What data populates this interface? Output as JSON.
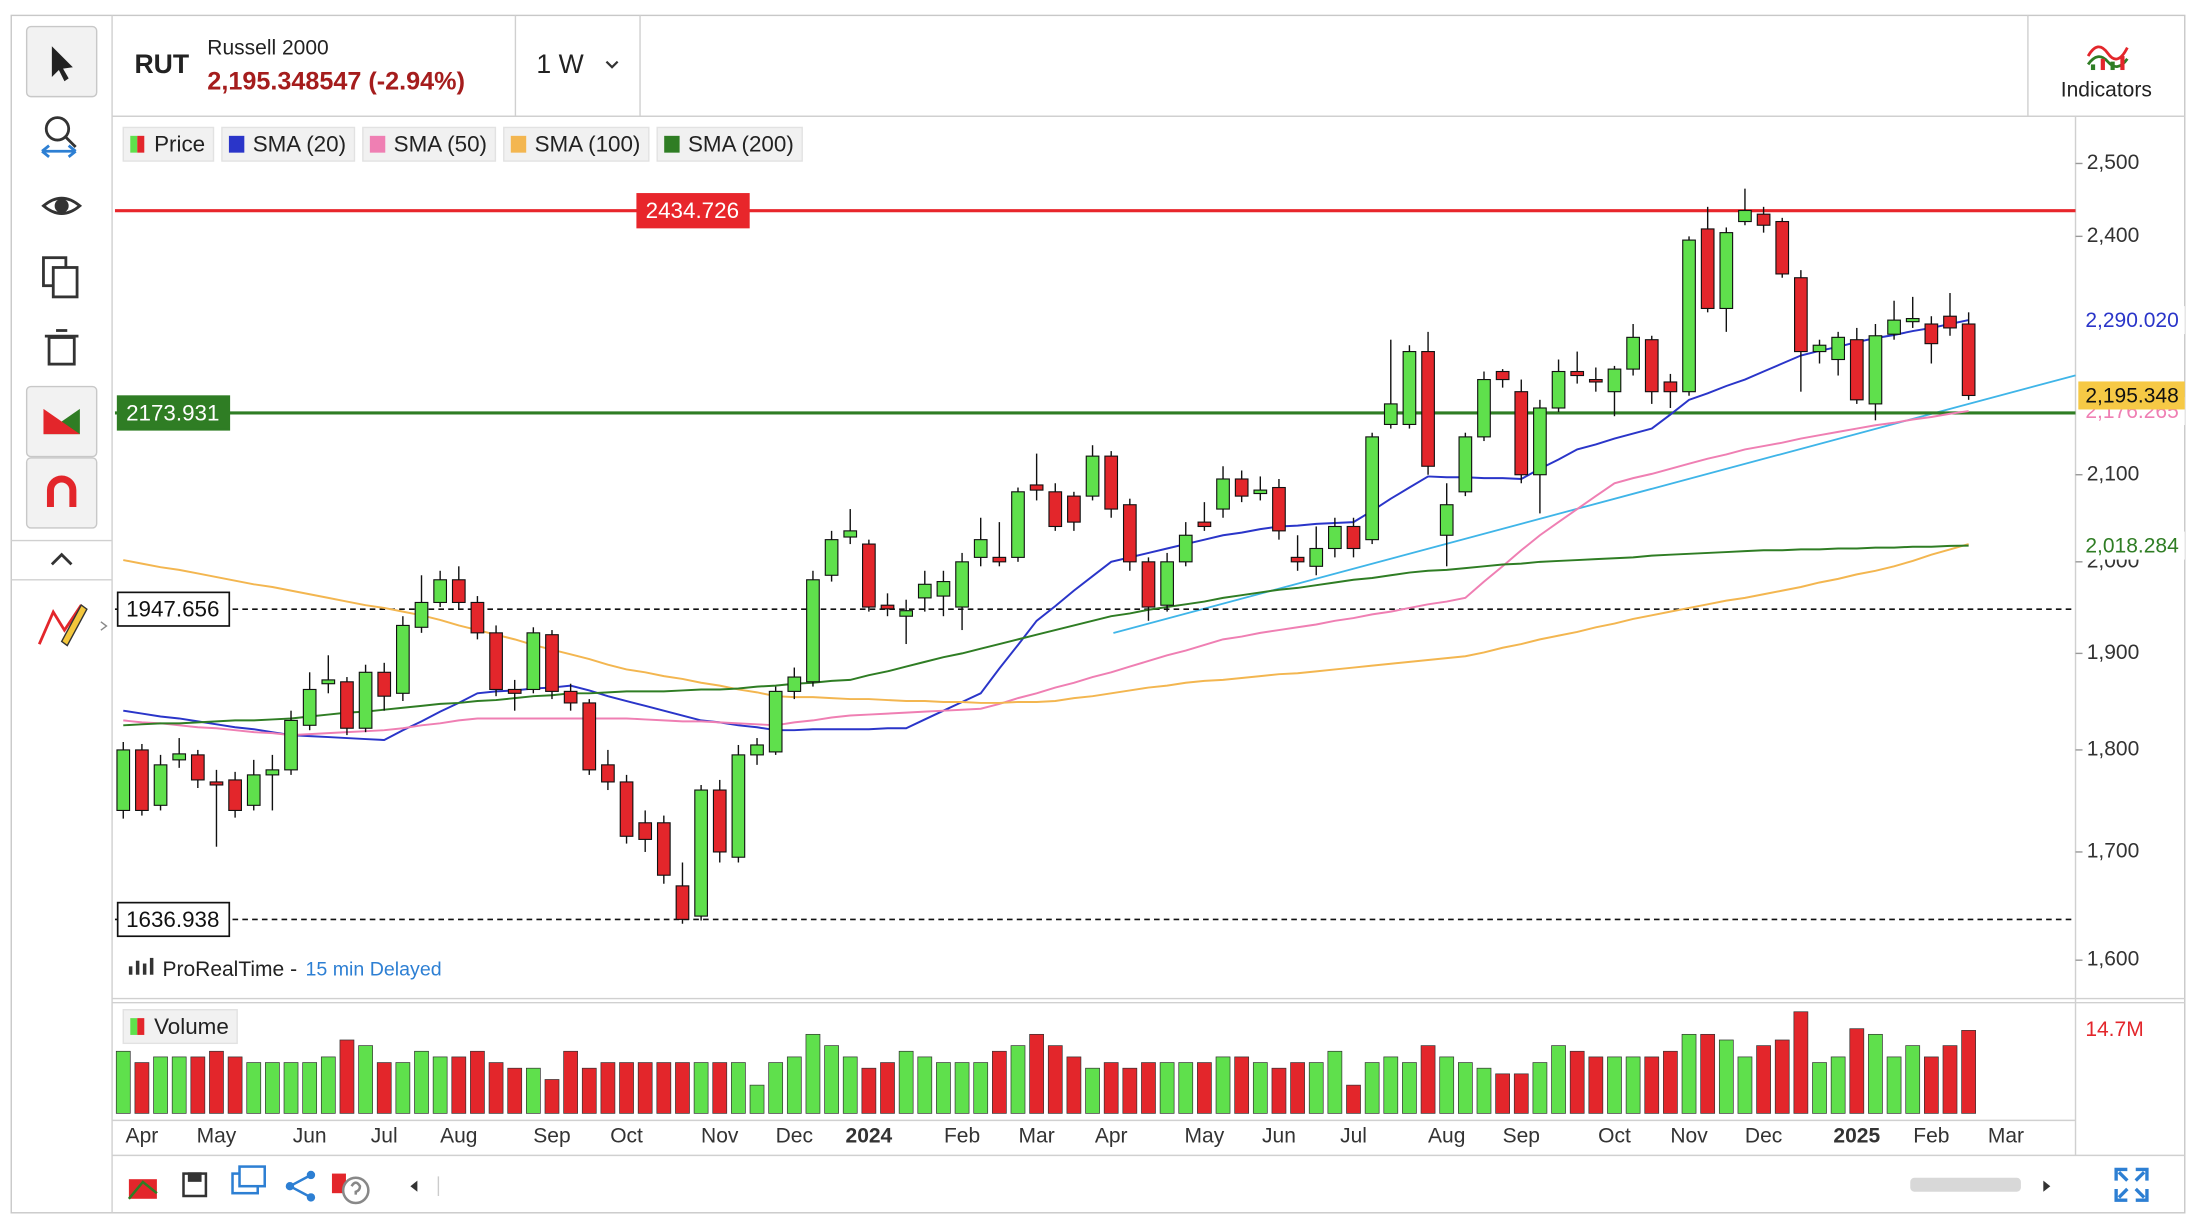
{
  "header": {
    "symbol": "RUT",
    "name": "Russell 2000",
    "price": "2,195.348547 (-2.94%)",
    "timeframe": "1 W",
    "indicators": "Indicators"
  },
  "chart_data": {
    "type": "candlestick",
    "categories": [
      null,
      "Apr",
      null,
      null,
      null,
      "May",
      null,
      null,
      null,
      null,
      "Jun",
      null,
      null,
      null,
      "Jul",
      null,
      null,
      null,
      "Aug",
      null,
      null,
      null,
      null,
      "Sep",
      null,
      null,
      null,
      "Oct",
      null,
      null,
      null,
      null,
      "Nov",
      null,
      null,
      null,
      "Dec",
      null,
      null,
      null,
      "2024",
      null,
      null,
      null,
      null,
      "Feb",
      null,
      null,
      null,
      "Mar",
      null,
      null,
      null,
      "Apr",
      null,
      null,
      null,
      null,
      "May",
      null,
      null,
      null,
      "Jun",
      null,
      null,
      null,
      "Jul",
      null,
      null,
      null,
      null,
      "Aug",
      null,
      null,
      null,
      "Sep",
      null,
      null,
      null,
      null,
      "Oct",
      null,
      null,
      null,
      "Nov",
      null,
      null,
      null,
      "Dec",
      null,
      null,
      null,
      null,
      "2025",
      null,
      null,
      null,
      "Feb",
      null,
      null,
      null,
      "Mar"
    ],
    "price_name": "Price",
    "up_color": "#5fe04c",
    "down_color": "#e3262b",
    "open": [
      1740,
      1800,
      1745,
      1790,
      1795,
      1768,
      1770,
      1745,
      1775,
      1780,
      1825,
      1868,
      1870,
      1822,
      1880,
      1858,
      1928,
      1955,
      1980,
      1955,
      1922,
      1862,
      1862,
      1920,
      1860,
      1848,
      1785,
      1768,
      1728,
      1728,
      1668,
      1640,
      1760,
      1695,
      1795,
      1798,
      1860,
      1870,
      1985,
      2028,
      2020,
      1952,
      1940,
      1960,
      1962,
      1950,
      2005,
      2005,
      2005,
      2088,
      2080,
      2075,
      2075,
      2122,
      2065,
      2000,
      1952,
      2000,
      2045,
      2060,
      2095,
      2078,
      2085,
      2005,
      1995,
      2015,
      2040,
      2025,
      2160,
      2160,
      2250,
      2030,
      2080,
      2145,
      2225,
      2200,
      2100,
      2180,
      2225,
      2215,
      2200,
      2228,
      2265,
      2212,
      2200,
      2410,
      2305,
      2420,
      2430,
      2420,
      2345,
      2250,
      2240,
      2265,
      2185,
      2272,
      2288,
      2285,
      2295,
      2285,
      null,
      null
    ],
    "high": [
      1808,
      1806,
      1795,
      1812,
      1800,
      1780,
      1778,
      1790,
      1795,
      1840,
      1880,
      1898,
      1875,
      1888,
      1890,
      1940,
      1985,
      1990,
      1995,
      1962,
      1930,
      1872,
      1928,
      1925,
      1868,
      1852,
      1800,
      1775,
      1740,
      1735,
      1690,
      1765,
      1770,
      1805,
      1812,
      1865,
      1885,
      1990,
      2035,
      2060,
      2025,
      1965,
      1958,
      1990,
      1990,
      2010,
      2050,
      2045,
      2085,
      2125,
      2090,
      2080,
      2135,
      2128,
      2072,
      2005,
      2010,
      2045,
      2068,
      2110,
      2105,
      2098,
      2095,
      2030,
      2040,
      2050,
      2050,
      2150,
      2265,
      2258,
      2275,
      2090,
      2150,
      2225,
      2228,
      2215,
      2190,
      2240,
      2250,
      2230,
      2232,
      2285,
      2270,
      2222,
      2400,
      2440,
      2412,
      2465,
      2440,
      2425,
      2355,
      2265,
      2275,
      2280,
      2285,
      2315,
      2320,
      2295,
      2325,
      2300,
      null,
      null
    ],
    "low": [
      1732,
      1735,
      1740,
      1782,
      1762,
      1705,
      1733,
      1740,
      1740,
      1775,
      1820,
      1858,
      1815,
      1818,
      1840,
      1850,
      1922,
      1950,
      1948,
      1915,
      1855,
      1840,
      1858,
      1852,
      1840,
      1775,
      1760,
      1708,
      1700,
      1670,
      1633,
      1636,
      1690,
      1690,
      1785,
      1795,
      1852,
      1865,
      1978,
      2020,
      1945,
      1940,
      1910,
      1945,
      1940,
      1925,
      1995,
      1995,
      2000,
      2070,
      2035,
      2035,
      2070,
      2050,
      1990,
      1935,
      1945,
      1995,
      2035,
      2050,
      2068,
      2070,
      2025,
      1990,
      1985,
      2005,
      2005,
      2020,
      2155,
      2155,
      2100,
      1995,
      2075,
      2140,
      2205,
      2090,
      2055,
      2175,
      2210,
      2200,
      2170,
      2220,
      2185,
      2180,
      2195,
      2300,
      2275,
      2415,
      2405,
      2345,
      2200,
      2235,
      2220,
      2185,
      2165,
      2265,
      2280,
      2235,
      2270,
      2190,
      null,
      null
    ],
    "close": [
      1800,
      1740,
      1785,
      1796,
      1770,
      1765,
      1740,
      1775,
      1780,
      1830,
      1862,
      1872,
      1822,
      1880,
      1855,
      1930,
      1955,
      1980,
      1955,
      1922,
      1862,
      1858,
      1922,
      1860,
      1848,
      1780,
      1768,
      1715,
      1712,
      1678,
      1637,
      1760,
      1700,
      1795,
      1805,
      1860,
      1875,
      1980,
      2025,
      2035,
      1950,
      1948,
      1946,
      1975,
      1978,
      2000,
      2025,
      2000,
      2080,
      2082,
      2040,
      2045,
      2122,
      2060,
      2000,
      1950,
      2000,
      2030,
      2040,
      2095,
      2075,
      2082,
      2035,
      2000,
      2015,
      2040,
      2015,
      2145,
      2185,
      2250,
      2110,
      2065,
      2145,
      2215,
      2215,
      2100,
      2180,
      2225,
      2220,
      2212,
      2228,
      2268,
      2200,
      2200,
      2395,
      2305,
      2405,
      2435,
      2415,
      2350,
      2250,
      2258,
      2268,
      2190,
      2270,
      2290,
      2292,
      2260,
      2280,
      2195.348547,
      null,
      null
    ],
    "close_label": "2,195.348",
    "series": [
      {
        "name": "SMA (20)",
        "color": "#2a35c9",
        "last_label": "2,290.020",
        "values": [
          1840,
          1837,
          1834,
          1832,
          1829,
          1826,
          1823,
          1821,
          1818,
          1815,
          1814,
          1813,
          1812,
          1811,
          1810,
          1820,
          1829,
          1839,
          1848,
          1858,
          1860,
          1861,
          1863,
          1864,
          1866,
          1861,
          1855,
          1850,
          1845,
          1840,
          1835,
          1830,
          1828,
          1825,
          1823,
          1820,
          1820,
          1821,
          1821,
          1821,
          1821,
          1822,
          1822,
          1831,
          1840,
          1849,
          1858,
          1884,
          1909,
          1935,
          1951,
          1968,
          1984,
          2000,
          2005,
          2010,
          2015,
          2020,
          2025,
          2030,
          2033,
          2037,
          2040,
          2041,
          2043,
          2044,
          2045,
          2058,
          2072,
          2085,
          2098,
          2097,
          2097,
          2096,
          2096,
          2095,
          2107,
          2118,
          2130,
          2136,
          2143,
          2149,
          2155,
          2172,
          2190,
          2198,
          2207,
          2215,
          2225,
          2235,
          2245,
          2251,
          2256,
          2262,
          2267,
          2271,
          2276,
          2280,
          2285,
          2290.02,
          null,
          null
        ]
      },
      {
        "name": "SMA (50)",
        "color": "#ef7fb3",
        "last_label": "2,176.265",
        "values": [
          1830,
          1828,
          1827,
          1825,
          1823,
          1822,
          1820,
          1818,
          1817,
          1815,
          1816,
          1817,
          1818,
          1819,
          1820,
          1822,
          1825,
          1827,
          1830,
          1832,
          1832,
          1832,
          1832,
          1832,
          1832,
          1832,
          1832,
          1832,
          1831,
          1830,
          1829,
          1829,
          1828,
          1827,
          1826,
          1825,
          1828,
          1830,
          1833,
          1835,
          1836,
          1837,
          1838,
          1839,
          1840,
          1841,
          1842,
          1847,
          1853,
          1858,
          1864,
          1869,
          1875,
          1880,
          1886,
          1892,
          1898,
          1903,
          1909,
          1915,
          1918,
          1922,
          1925,
          1928,
          1931,
          1935,
          1938,
          1942,
          1945,
          1949,
          1953,
          1956,
          1960,
          1978,
          1995,
          2013,
          2030,
          2045,
          2060,
          2075,
          2090,
          2096,
          2101,
          2107,
          2113,
          2119,
          2124,
          2130,
          2134,
          2138,
          2143,
          2147,
          2151,
          2155,
          2159,
          2162,
          2166,
          2169,
          2173,
          2176.265,
          null,
          null
        ]
      },
      {
        "name": "SMA (100)",
        "color": "#f3b650",
        "values": [
          2002,
          1998,
          1994,
          1991,
          1987,
          1983,
          1979,
          1975,
          1972,
          1968,
          1964,
          1960,
          1956,
          1952,
          1949,
          1945,
          1941,
          1936,
          1930,
          1925,
          1920,
          1915,
          1909,
          1904,
          1899,
          1894,
          1888,
          1883,
          1880,
          1876,
          1873,
          1869,
          1866,
          1862,
          1859,
          1855,
          1854,
          1854,
          1853,
          1852,
          1852,
          1851,
          1850,
          1850,
          1849,
          1849,
          1848,
          1848,
          1849,
          1849,
          1850,
          1853,
          1855,
          1858,
          1861,
          1864,
          1866,
          1869,
          1871,
          1872,
          1874,
          1876,
          1878,
          1879,
          1881,
          1883,
          1885,
          1887,
          1889,
          1891,
          1893,
          1895,
          1897,
          1901,
          1906,
          1910,
          1915,
          1919,
          1923,
          1928,
          1932,
          1937,
          1941,
          1945,
          1949,
          1953,
          1957,
          1960,
          1964,
          1968,
          1972,
          1977,
          1981,
          1986,
          1990,
          1995,
          2001,
          2008,
          2014,
          2020,
          null,
          null
        ]
      },
      {
        "name": "SMA (200)",
        "color": "#2f7d24",
        "last_label": "2,018.284",
        "values": [
          1825,
          1826,
          1827,
          1827,
          1828,
          1829,
          1830,
          1830,
          1831,
          1832,
          1834,
          1836,
          1838,
          1839,
          1841,
          1843,
          1845,
          1847,
          1848,
          1850,
          1851,
          1853,
          1855,
          1856,
          1858,
          1858,
          1859,
          1860,
          1860,
          1860,
          1861,
          1862,
          1862,
          1863,
          1865,
          1866,
          1868,
          1869,
          1871,
          1872,
          1877,
          1881,
          1886,
          1891,
          1896,
          1900,
          1905,
          1910,
          1915,
          1920,
          1925,
          1930,
          1935,
          1940,
          1943,
          1947,
          1950,
          1953,
          1956,
          1960,
          1963,
          1966,
          1969,
          1971,
          1974,
          1977,
          1980,
          1982,
          1985,
          1988,
          1990,
          1991,
          1993,
          1995,
          1997,
          1998,
          2000,
          2001,
          2002,
          2003,
          2004,
          2005,
          2007,
          2008,
          2009,
          2010,
          2011,
          2012,
          2013,
          2013,
          2014,
          2014,
          2015,
          2015,
          2016,
          2016,
          2017,
          2017,
          2018,
          2018.284,
          null,
          null
        ]
      }
    ],
    "volume": {
      "name": "Volume",
      "ylim": [
        0,
        19.6
      ],
      "last_label": "14.7M",
      "values": [
        11,
        9,
        10,
        10,
        10,
        11,
        10,
        9,
        9,
        9,
        9,
        10,
        13,
        12,
        9,
        9,
        11,
        10,
        10,
        11,
        9,
        8,
        8,
        6,
        11,
        8,
        9,
        9,
        9,
        9,
        9,
        9,
        9,
        9,
        5,
        9,
        10,
        14,
        12,
        10,
        8,
        9,
        11,
        10,
        9,
        9,
        9,
        11,
        12,
        14,
        12,
        10,
        8,
        9,
        8,
        9,
        9,
        9,
        9,
        10,
        10,
        9,
        8,
        9,
        9,
        11,
        5,
        9,
        10,
        9,
        12,
        10,
        9,
        8,
        7,
        7,
        9,
        12,
        11,
        10,
        10,
        10,
        10,
        11,
        14,
        14,
        13,
        10,
        12,
        13,
        18,
        9,
        10,
        15,
        14,
        10,
        12,
        10,
        12,
        14.7,
        null,
        null
      ]
    },
    "ylim": [
      1566,
      2559
    ],
    "log_scale": true,
    "yticks": [
      {
        "value": 1600,
        "label": "1,600"
      },
      {
        "value": 1700,
        "label": "1,700"
      },
      {
        "value": 1800,
        "label": "1,800"
      },
      {
        "value": 1900,
        "label": "1,900"
      },
      {
        "value": 2000,
        "label": "2,000"
      },
      {
        "value": 2100,
        "label": "2,100"
      },
      {
        "value": 2400,
        "label": "2,400"
      },
      {
        "value": 2500,
        "label": "2,500"
      }
    ],
    "levels": [
      {
        "value": 2434.726,
        "color": "#e8262b",
        "dashed": false
      },
      {
        "value": 2173.931,
        "color": "#2f7d24",
        "dashed": false
      },
      {
        "value": 1947.656,
        "color": "#111111",
        "dashed": true
      },
      {
        "value": 1636.938,
        "color": "#111111",
        "dashed": true
      }
    ],
    "source": "ProRealTime -",
    "delay": "15 min Delayed"
  }
}
